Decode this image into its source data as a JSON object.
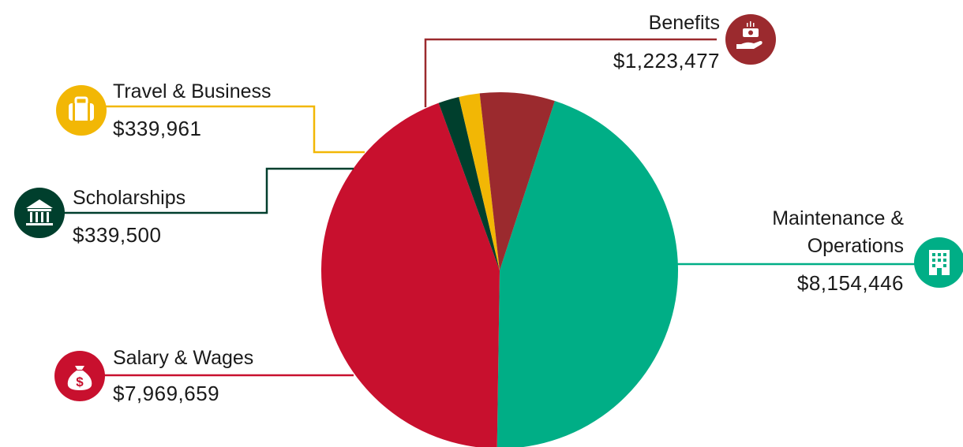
{
  "chart_data": {
    "type": "pie",
    "title": "",
    "slices": [
      {
        "label": "Maintenance & Operations",
        "value": 8154446,
        "display": "$8,154,446",
        "color": "#00ae86",
        "icon": "office-building-icon"
      },
      {
        "label": "Salary & Wages",
        "value": 7969659,
        "display": "$7,969,659",
        "color": "#c8102e",
        "icon": "money-bag-icon"
      },
      {
        "label": "Scholarships",
        "value": 339500,
        "display": "$339,500",
        "color": "#003f2d",
        "icon": "bank-building-icon"
      },
      {
        "label": "Travel & Business",
        "value": 339961,
        "display": "$339,961",
        "color": "#f2b705",
        "icon": "briefcase-icon"
      },
      {
        "label": "Benefits",
        "value": 1223477,
        "display": "$1,223,477",
        "color": "#9b2a2e",
        "icon": "hand-holding-cash-icon"
      }
    ]
  },
  "labels": {
    "maintenance_line1": "Maintenance &",
    "maintenance_line2": "Operations"
  }
}
